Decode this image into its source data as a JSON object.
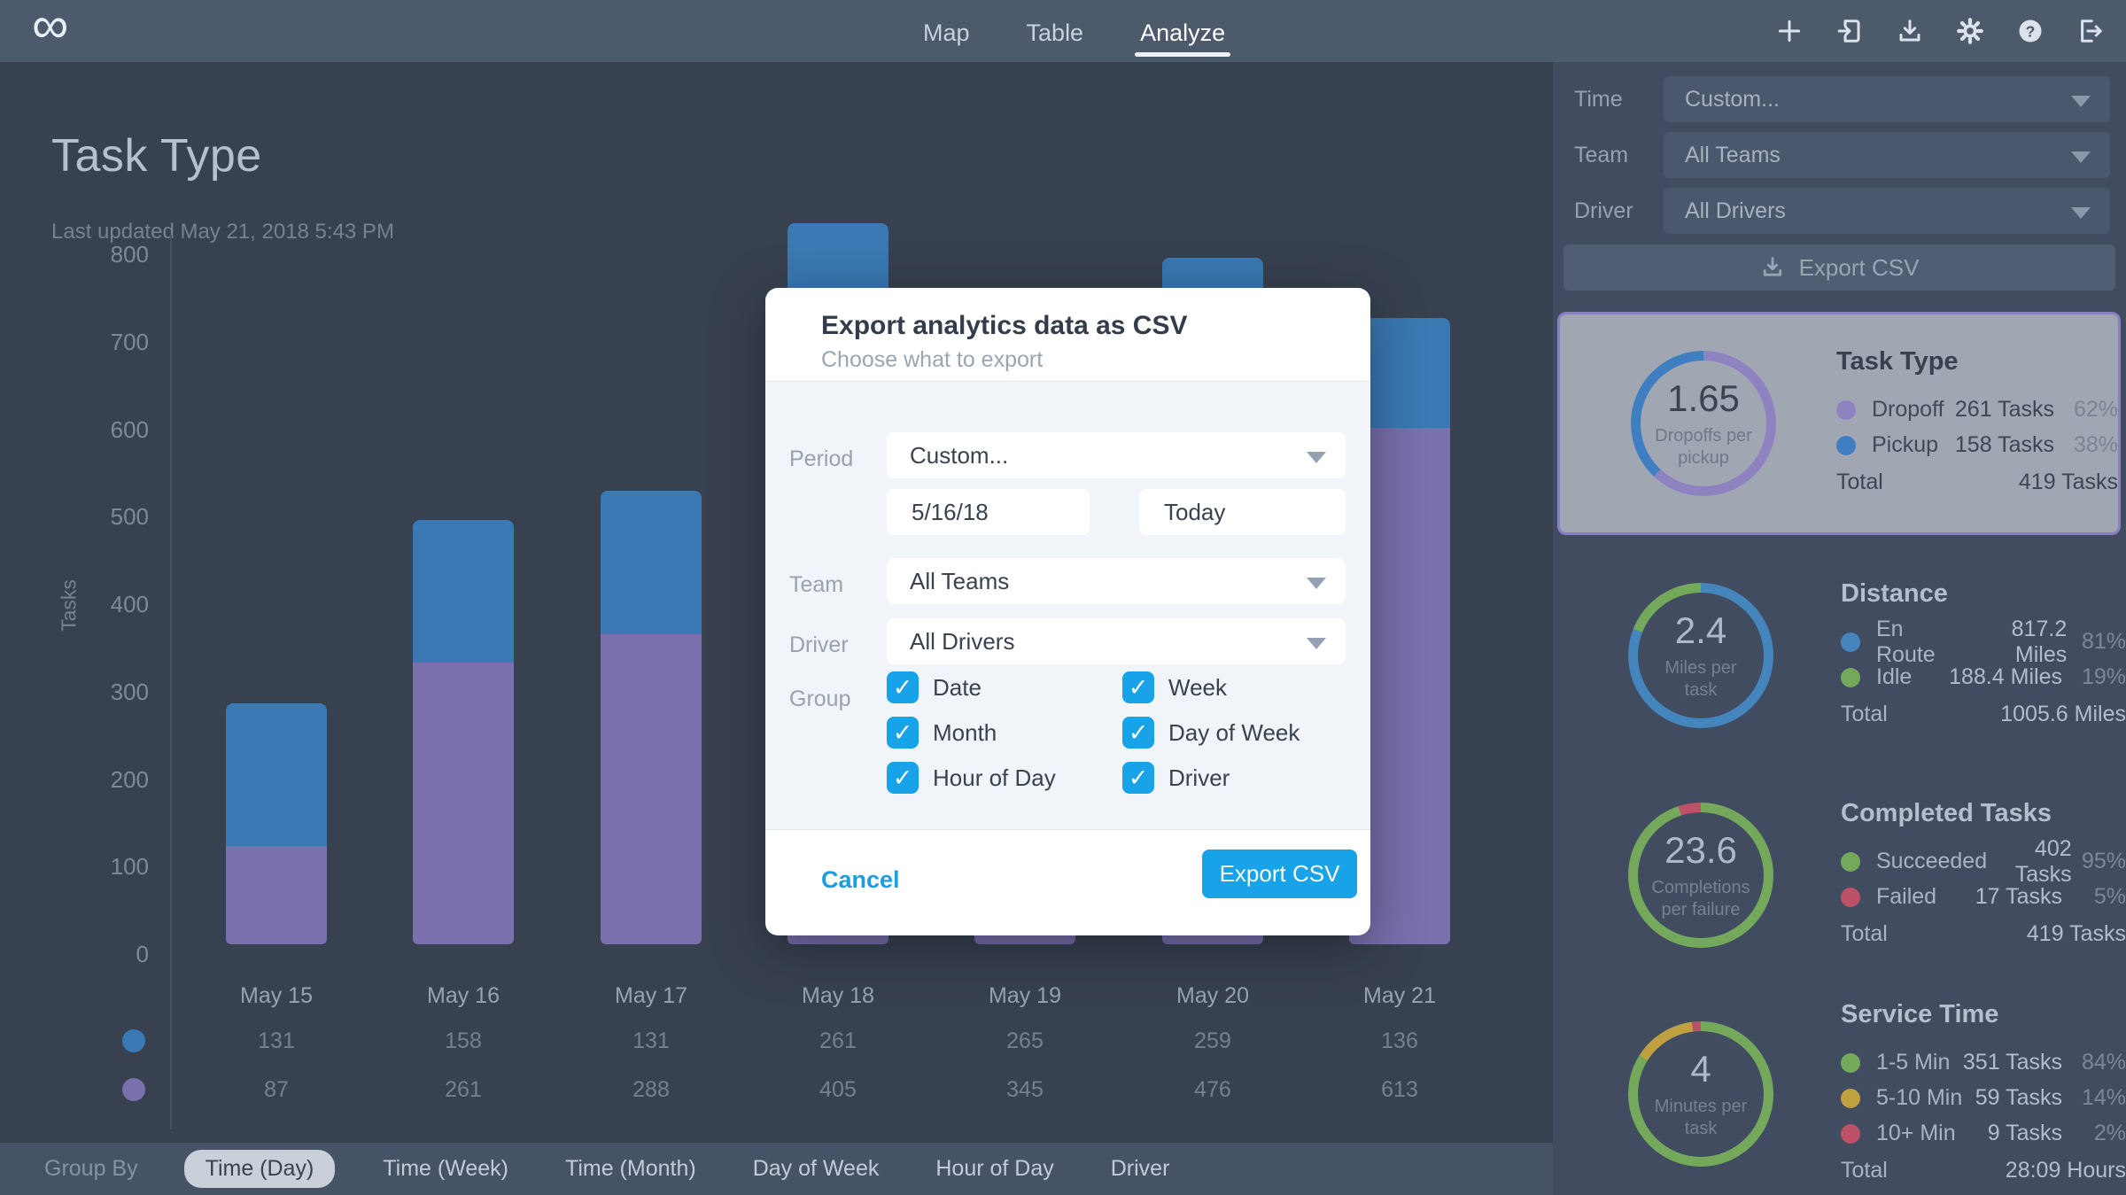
{
  "nav": {
    "logo": "∞",
    "tabs": [
      {
        "label": "Map",
        "active": false
      },
      {
        "label": "Table",
        "active": false
      },
      {
        "label": "Analyze",
        "active": true
      }
    ],
    "icons": [
      "plus-icon",
      "import-icon",
      "download-icon",
      "settings-gear-icon",
      "help-icon",
      "logout-icon"
    ]
  },
  "page": {
    "title": "Task Type",
    "last_updated": "Last updated May 21, 2018 5:43 PM"
  },
  "chart_data": {
    "type": "bar",
    "stacked": true,
    "title": "Task Type",
    "ylabel": "Tasks",
    "ylim": [
      0,
      800
    ],
    "yticks": [
      800,
      700,
      600,
      500,
      400,
      300,
      200,
      100,
      0
    ],
    "grid": false,
    "categories": [
      "May 15",
      "May 16",
      "May 17",
      "May 18",
      "May 19",
      "May 20",
      "May 21"
    ],
    "series": [
      {
        "name": "Pickup",
        "color": "#3a79b4",
        "values": [
          131,
          158,
          131,
          261,
          265,
          259,
          136
        ]
      },
      {
        "name": "Dropoff",
        "color": "#7a70ae",
        "values": [
          87,
          261,
          288,
          405,
          345,
          476,
          613
        ]
      }
    ],
    "bar_segments_axis_units": {
      "note": "stacked segment heights as drawn (axis units), dropoff bottom / pickup top",
      "dropoff": [
        112,
        322,
        354,
        620,
        345,
        580,
        590
      ],
      "pickup": [
        163,
        163,
        164,
        205,
        265,
        205,
        126
      ]
    },
    "legend_position": "left of value rows"
  },
  "bottom_bar": {
    "label": "Group By",
    "options": [
      {
        "label": "Time (Day)",
        "active": true
      },
      {
        "label": "Time (Week)",
        "active": false
      },
      {
        "label": "Time (Month)",
        "active": false
      },
      {
        "label": "Day of Week",
        "active": false
      },
      {
        "label": "Hour of Day",
        "active": false
      },
      {
        "label": "Driver",
        "active": false
      }
    ]
  },
  "sidebar": {
    "filters": [
      {
        "label": "Time",
        "value": "Custom..."
      },
      {
        "label": "Team",
        "value": "All Teams"
      },
      {
        "label": "Driver",
        "value": "All Drivers"
      }
    ],
    "export_button": "Export CSV",
    "cards": [
      {
        "title": "Task Type",
        "selected": true,
        "center_value": "1.65",
        "center_label": "Dropoffs per pickup",
        "ring": [
          {
            "color": "#8e82c1",
            "pct": 62
          },
          {
            "color": "#3f7fc1",
            "pct": 38
          }
        ],
        "rows": [
          {
            "dot": "#8e82c1",
            "label": "Dropoff",
            "value": "261 Tasks",
            "pct": "62%"
          },
          {
            "dot": "#3f7fc1",
            "label": "Pickup",
            "value": "158 Tasks",
            "pct": "38%"
          }
        ],
        "total_label": "Total",
        "total_value": "419 Tasks"
      },
      {
        "title": "Distance",
        "selected": false,
        "center_value": "2.4",
        "center_label": "Miles per task",
        "ring": [
          {
            "color": "#4585bd",
            "pct": 81
          },
          {
            "color": "#74a95c",
            "pct": 19
          }
        ],
        "rows": [
          {
            "dot": "#4585bd",
            "label": "En Route",
            "value": "817.2 Miles",
            "pct": "81%"
          },
          {
            "dot": "#74a95c",
            "label": "Idle",
            "value": "188.4 Miles",
            "pct": "19%"
          }
        ],
        "total_label": "Total",
        "total_value": "1005.6 Miles"
      },
      {
        "title": "Completed Tasks",
        "selected": false,
        "center_value": "23.6",
        "center_label": "Completions per failure",
        "ring": [
          {
            "color": "#74a95c",
            "pct": 95
          },
          {
            "color": "#bd5168",
            "pct": 5
          }
        ],
        "rows": [
          {
            "dot": "#74a95c",
            "label": "Succeeded",
            "value": "402 Tasks",
            "pct": "95%"
          },
          {
            "dot": "#bd5168",
            "label": "Failed",
            "value": "17 Tasks",
            "pct": "5%"
          }
        ],
        "total_label": "Total",
        "total_value": "419 Tasks"
      },
      {
        "title": "Service Time",
        "selected": false,
        "center_value": "4",
        "center_label": "Minutes per task",
        "ring": [
          {
            "color": "#74a95c",
            "pct": 84
          },
          {
            "color": "#bfa23f",
            "pct": 14
          },
          {
            "color": "#bd5168",
            "pct": 2
          }
        ],
        "rows": [
          {
            "dot": "#74a95c",
            "label": "1-5 Min",
            "value": "351 Tasks",
            "pct": "84%"
          },
          {
            "dot": "#bfa23f",
            "label": "5-10 Min",
            "value": "59 Tasks",
            "pct": "14%"
          },
          {
            "dot": "#bd5168",
            "label": "10+ Min",
            "value": "9 Tasks",
            "pct": "2%"
          }
        ],
        "total_label": "Total",
        "total_value": "28:09 Hours"
      }
    ]
  },
  "modal": {
    "title": "Export analytics data as CSV",
    "subtitle": "Choose what to export",
    "period_label": "Period",
    "period_value": "Custom...",
    "date_start": "5/16/18",
    "date_end": "Today",
    "team_label": "Team",
    "team_value": "All Teams",
    "driver_label": "Driver",
    "driver_value": "All Drivers",
    "group_label": "Group",
    "group_options": [
      {
        "label": "Date",
        "checked": true
      },
      {
        "label": "Week",
        "checked": true
      },
      {
        "label": "Month",
        "checked": true
      },
      {
        "label": "Day of Week",
        "checked": true
      },
      {
        "label": "Hour of Day",
        "checked": true
      },
      {
        "label": "Driver",
        "checked": true
      }
    ],
    "cancel_label": "Cancel",
    "export_label": "Export CSV",
    "check_glyph": "✓"
  },
  "colors": {
    "accent_blue": "#18a3e9",
    "bar_blue": "#3a79b4",
    "bar_purple": "#7a70ae",
    "nav_bg": "#4d5a6c",
    "content_bg": "#38414f",
    "sidebar_bg": "#414c60",
    "bottom_bar_bg": "#465266",
    "selected_card_bg": "#a0a7b3",
    "selected_card_border": "#8a7fc2"
  }
}
